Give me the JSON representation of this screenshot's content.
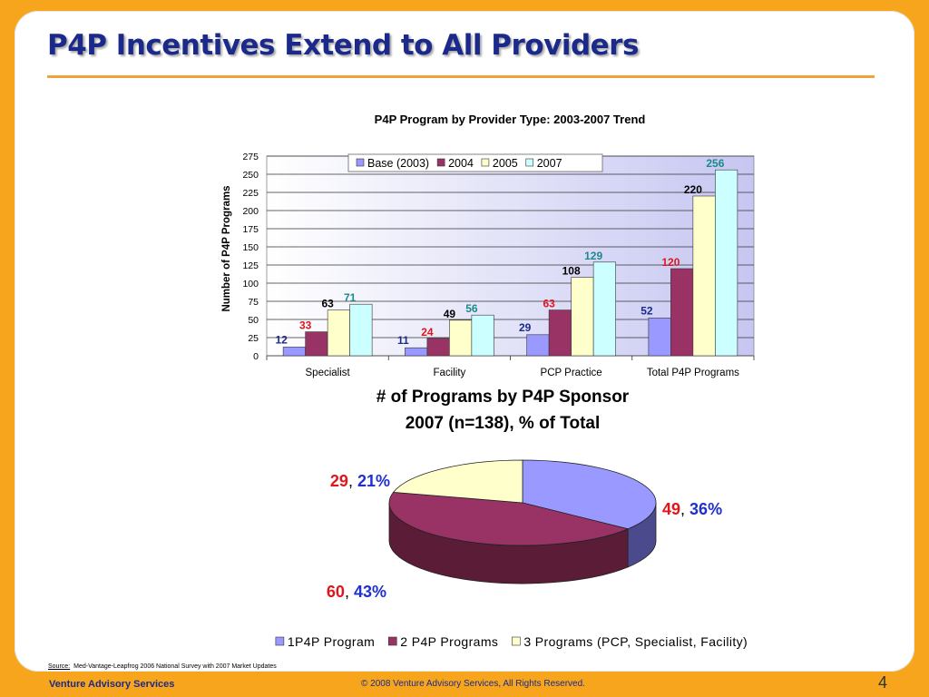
{
  "slide": {
    "title": "P4P Incentives Extend to All Providers",
    "source_label": "Source:",
    "source_text": "Med-Vantage-Leapfrog 2006 National Survey with 2007 Market Updates",
    "footer_company": "Venture Advisory Services",
    "footer_copyright": "© 2008 Venture Advisory Services, All Rights Reserved.",
    "page_number": "4"
  },
  "colors": {
    "background": "#f6a51c",
    "title": "#1b2a8a",
    "rule": "#f2a23a"
  },
  "chart_data": [
    {
      "type": "bar",
      "title": "P4P Program by Provider Type:   2003-2007 Trend",
      "xlabel": "",
      "ylabel": "Number of P4P Programs",
      "categories": [
        "Specialist",
        "Facility",
        "PCP Practice",
        "Total P4P Programs"
      ],
      "series": [
        {
          "name": "Base (2003)",
          "color": "#9999ff",
          "label_color": "#1b2a8a",
          "values": [
            12,
            11,
            29,
            52
          ]
        },
        {
          "name": "2004",
          "color": "#993366",
          "label_color": "#e0161b",
          "values": [
            33,
            24,
            63,
            120
          ]
        },
        {
          "name": "2005",
          "color": "#ffffcc",
          "label_color": "#000000",
          "values": [
            63,
            49,
            108,
            220
          ]
        },
        {
          "name": "2007",
          "color": "#ccffff",
          "label_color": "#1a8a8a",
          "values": [
            71,
            56,
            129,
            256
          ]
        }
      ],
      "ylim": [
        0,
        275
      ],
      "yticks": [
        0,
        25,
        50,
        75,
        100,
        125,
        150,
        175,
        200,
        225,
        250,
        275
      ],
      "grid": true,
      "legend": "top-right"
    },
    {
      "type": "pie",
      "title": "# of Programs by P4P Sponsor",
      "subtitle": "2007 (n=138),  % of Total",
      "slices": [
        {
          "name": "1P4P Program",
          "value": 49,
          "percent": "36%",
          "color": "#9999ff",
          "side": "#4a4a8c"
        },
        {
          "name": "2 P4P Programs",
          "value": 60,
          "percent": "43%",
          "color": "#993366",
          "side": "#5a1c36"
        },
        {
          "name": "3 Programs (PCP, Specialist, Facility)",
          "value": 29,
          "percent": "21%",
          "color": "#ffffcc",
          "side": "#b8b890"
        }
      ],
      "legend": "bottom"
    }
  ]
}
